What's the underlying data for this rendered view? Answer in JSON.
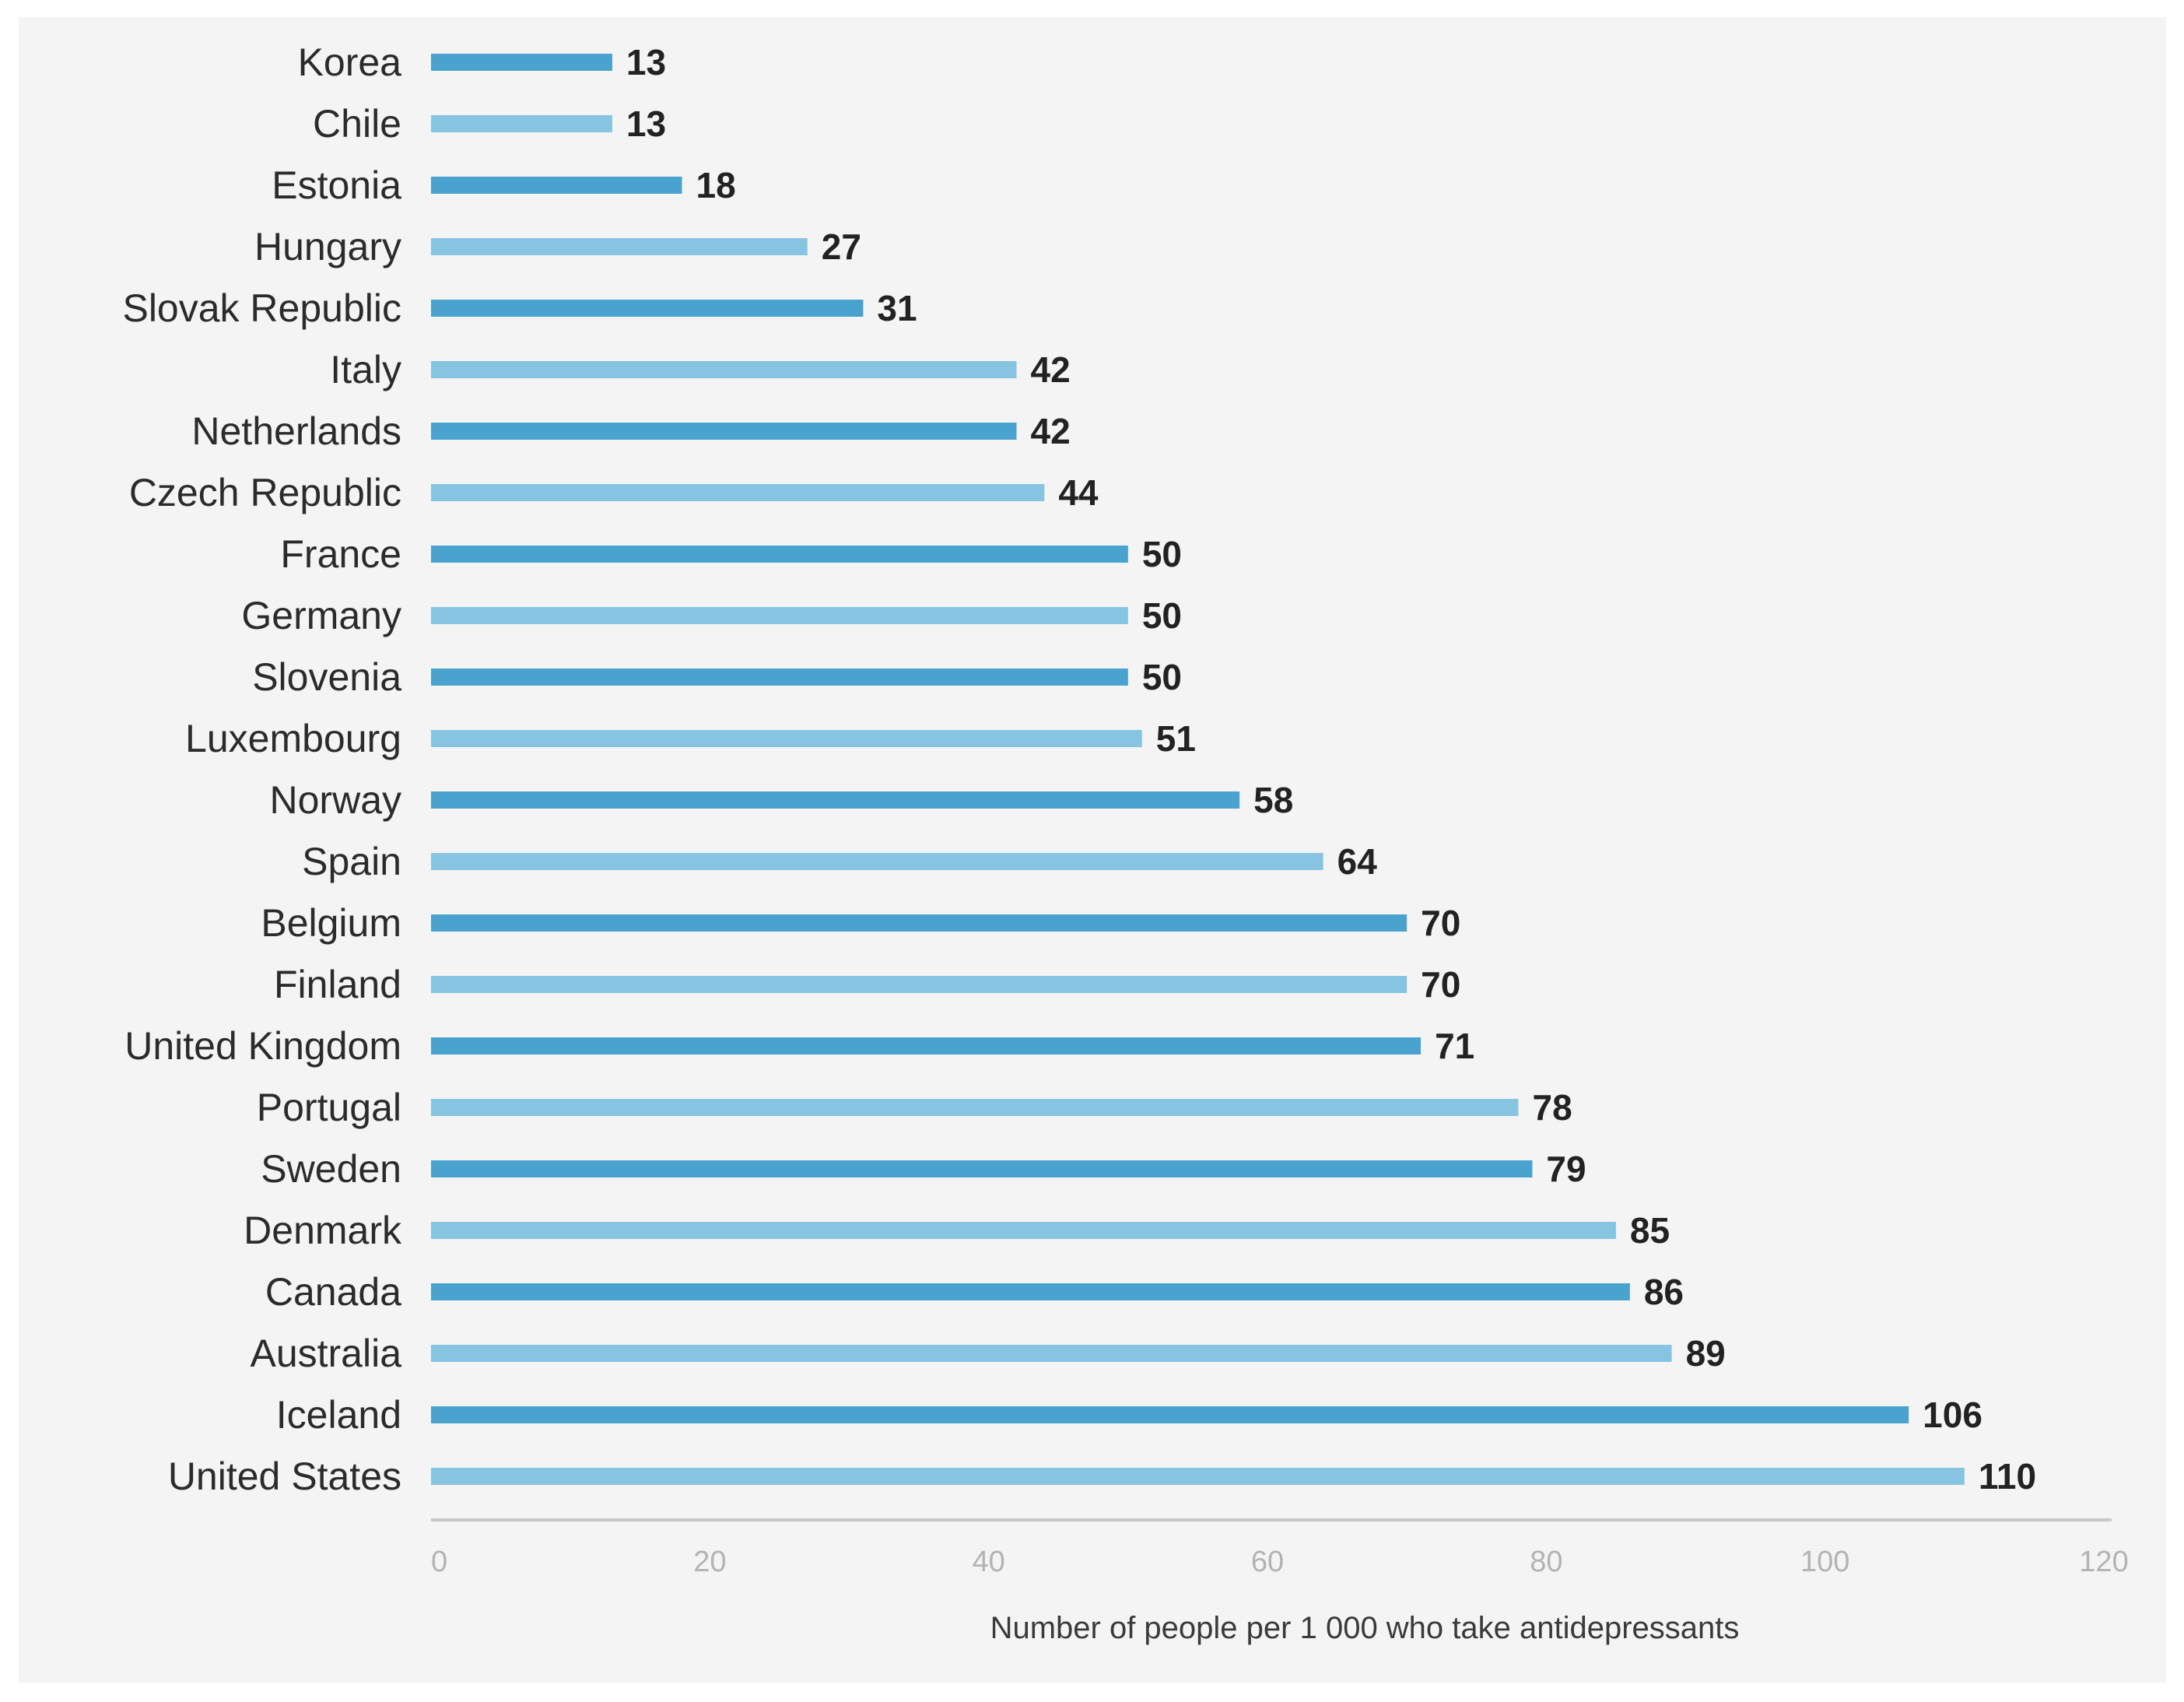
{
  "chart_data": {
    "type": "bar",
    "orientation": "horizontal",
    "title": "",
    "xlabel": "Number of people per 1 000 who take antidepressants",
    "ylabel": "",
    "xlim": [
      0,
      120
    ],
    "xticks": [
      "0",
      "20",
      "40",
      "60",
      "80",
      "100",
      "120"
    ],
    "grid": false,
    "legend": "none",
    "colors": {
      "dark_bar": "#4aa3cf",
      "light_bar": "#86c4e1",
      "axis": "#c8c8c8"
    },
    "categories": [
      "Korea",
      "Chile",
      "Estonia",
      "Hungary",
      "Slovak Republic",
      "Italy",
      "Netherlands",
      "Czech Republic",
      "France",
      "Germany",
      "Slovenia",
      "Luxembourg",
      "Norway",
      "Spain",
      "Belgium",
      "Finland",
      "United Kingdom",
      "Portugal",
      "Sweden",
      "Denmark",
      "Canada",
      "Australia",
      "Iceland",
      "United States"
    ],
    "values": [
      13,
      13,
      18,
      27,
      31,
      42,
      42,
      44,
      50,
      50,
      50,
      51,
      58,
      64,
      70,
      70,
      71,
      78,
      79,
      85,
      86,
      89,
      106,
      110
    ]
  }
}
